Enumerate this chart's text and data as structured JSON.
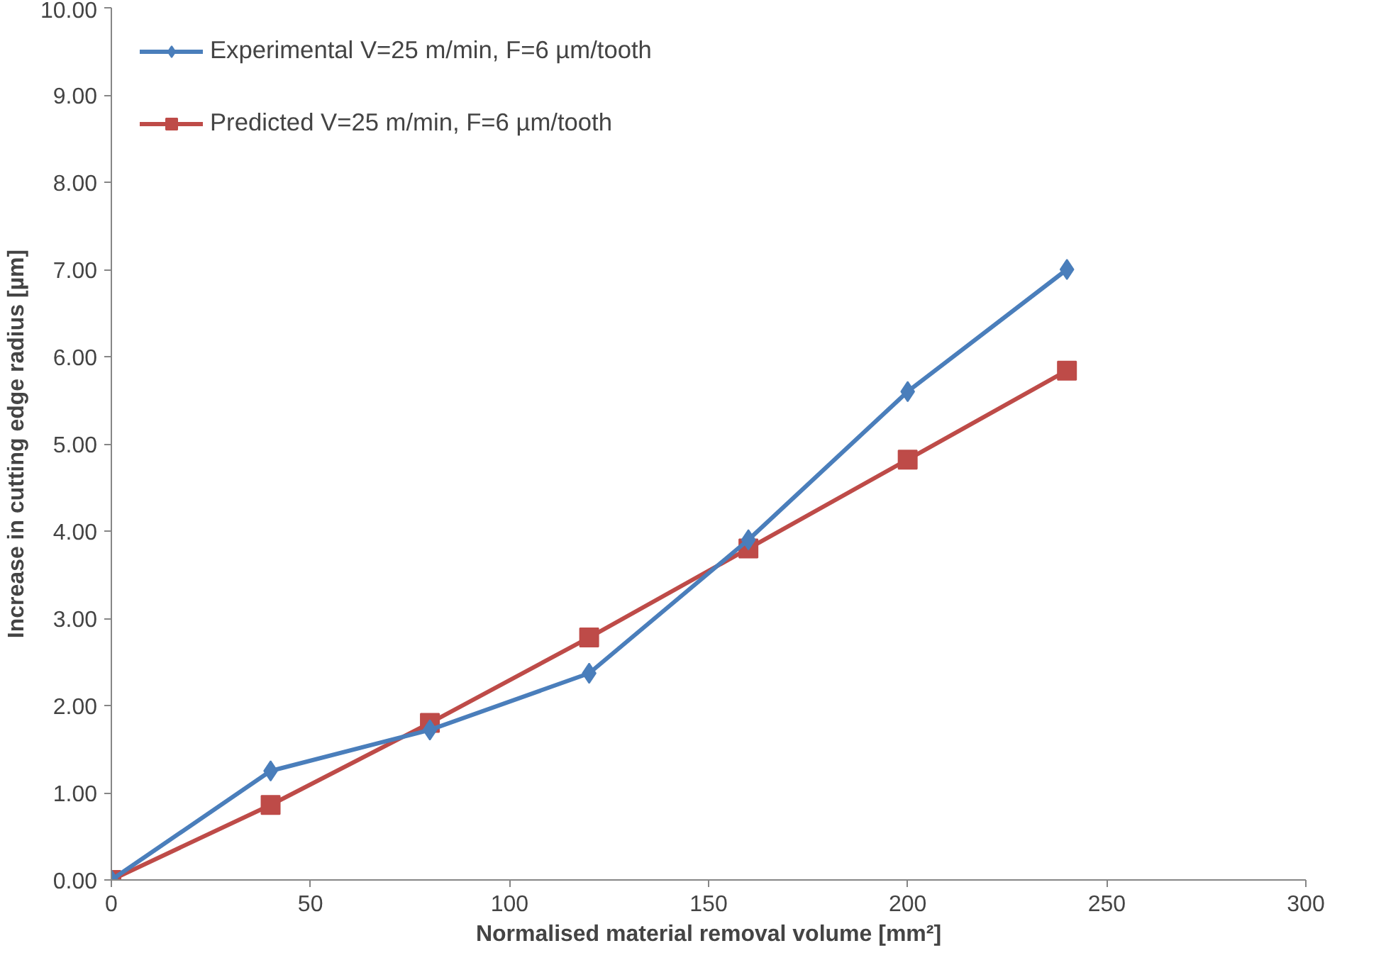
{
  "chart_data": {
    "type": "line",
    "xlabel": "Normalised material removal volume [mm²]",
    "ylabel": "Increase in cutting edge radius [µm]",
    "x": [
      0,
      40,
      80,
      120,
      160,
      200,
      240
    ],
    "series": [
      {
        "name": "Experimental V=25 m/min, F=6 µm/tooth",
        "color": "#4a7ebb",
        "marker": "diamond",
        "values": [
          0,
          1.25,
          1.72,
          2.37,
          3.9,
          5.6,
          7.0
        ]
      },
      {
        "name": "Predicted V=25 m/min, F=6 µm/tooth",
        "color": "#be4b48",
        "marker": "square",
        "values": [
          0,
          0.86,
          1.8,
          2.78,
          3.8,
          4.82,
          5.84
        ]
      }
    ],
    "xlim": [
      0,
      300
    ],
    "xticks": [
      0,
      50,
      100,
      150,
      200,
      250,
      300
    ],
    "ylim": [
      0,
      10
    ],
    "yticks": [
      {
        "value": 0,
        "label": "0.00"
      },
      {
        "value": 1,
        "label": "1.00"
      },
      {
        "value": 2,
        "label": "2.00"
      },
      {
        "value": 3,
        "label": "3.00"
      },
      {
        "value": 4,
        "label": "4.00"
      },
      {
        "value": 5,
        "label": "5.00"
      },
      {
        "value": 6,
        "label": "6.00"
      },
      {
        "value": 7,
        "label": "7.00"
      },
      {
        "value": 8,
        "label": "8.00"
      },
      {
        "value": 9,
        "label": "9.00"
      },
      {
        "value": 10,
        "label": "10.00"
      }
    ],
    "grid": false,
    "legend": "top left"
  }
}
